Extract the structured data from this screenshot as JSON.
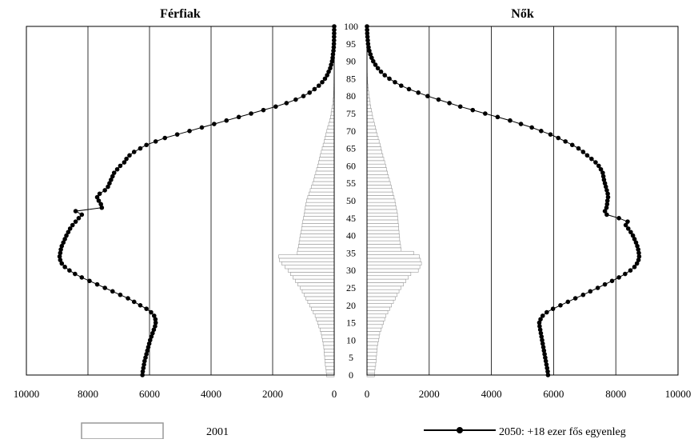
{
  "chart_data": {
    "type": "population-pyramid",
    "panels": [
      {
        "side": "left",
        "title": "Férfiak"
      },
      {
        "side": "right",
        "title": "Nők"
      }
    ],
    "x_axis": {
      "left_ticks": [
        "10000",
        "8000",
        "6000",
        "4000",
        "2000",
        "0"
      ],
      "right_ticks": [
        "0",
        "2000",
        "4000",
        "6000",
        "8000",
        "10000"
      ],
      "range": [
        0,
        10000
      ],
      "grid": "vertical"
    },
    "age_axis": {
      "labels": [
        "0",
        "5",
        "10",
        "15",
        "20",
        "25",
        "30",
        "35",
        "40",
        "45",
        "50",
        "55",
        "60",
        "65",
        "70",
        "75",
        "80",
        "85",
        "90",
        "95",
        "100"
      ],
      "range": [
        0,
        100
      ]
    },
    "legend": [
      {
        "label": "2001",
        "style": "bar"
      },
      {
        "label": "2050: +18 ezer fős egyenleg",
        "style": "line-marker"
      }
    ],
    "bars_2001": {
      "ages": [
        0,
        1,
        2,
        3,
        4,
        5,
        6,
        7,
        8,
        9,
        10,
        11,
        12,
        13,
        14,
        15,
        16,
        17,
        18,
        19,
        20,
        21,
        22,
        23,
        24,
        25,
        26,
        27,
        28,
        29,
        30,
        31,
        32,
        33,
        34,
        35,
        36,
        37,
        38,
        39,
        40,
        41,
        42,
        43,
        44,
        45,
        46,
        47,
        48,
        49,
        50,
        51,
        52,
        53,
        54,
        55,
        56,
        57,
        58,
        59,
        60,
        61,
        62,
        63,
        64,
        65,
        66,
        67,
        68,
        69,
        70,
        71,
        72,
        73,
        74,
        75,
        76,
        77,
        78,
        79,
        80,
        81,
        82,
        83,
        84,
        85,
        86,
        87,
        88,
        89,
        90,
        91,
        92,
        93,
        94,
        95,
        96,
        97,
        98,
        99,
        100
      ],
      "male": [
        250,
        260,
        270,
        290,
        300,
        310,
        320,
        330,
        340,
        360,
        380,
        400,
        420,
        460,
        500,
        540,
        580,
        620,
        680,
        740,
        800,
        860,
        920,
        980,
        1040,
        1100,
        1180,
        1260,
        1340,
        1420,
        1500,
        1600,
        1700,
        1780,
        1800,
        1200,
        1180,
        1160,
        1140,
        1120,
        1100,
        1080,
        1060,
        1040,
        1020,
        1000,
        980,
        960,
        940,
        920,
        900,
        860,
        820,
        780,
        740,
        700,
        660,
        630,
        600,
        570,
        540,
        510,
        480,
        450,
        420,
        390,
        360,
        330,
        300,
        270,
        240,
        210,
        180,
        150,
        120,
        100,
        80,
        60,
        45,
        35,
        25,
        20,
        15,
        12,
        10,
        8,
        6,
        5,
        4,
        3,
        2,
        2,
        1,
        1,
        1,
        0,
        0,
        0,
        0,
        0,
        0
      ],
      "female": [
        240,
        250,
        260,
        280,
        290,
        300,
        310,
        320,
        330,
        350,
        370,
        390,
        410,
        450,
        490,
        530,
        570,
        610,
        670,
        730,
        790,
        850,
        910,
        970,
        1030,
        1090,
        1170,
        1250,
        1330,
        1410,
        1650,
        1700,
        1750,
        1720,
        1680,
        1500,
        1100,
        1080,
        1060,
        1050,
        1040,
        1030,
        1020,
        1010,
        1000,
        990,
        980,
        960,
        940,
        920,
        900,
        870,
        840,
        810,
        780,
        750,
        720,
        690,
        660,
        630,
        600,
        570,
        540,
        510,
        480,
        450,
        420,
        390,
        360,
        330,
        300,
        270,
        240,
        210,
        180,
        160,
        140,
        120,
        100,
        85,
        70,
        55,
        40,
        30,
        20,
        15,
        10,
        7,
        5,
        3,
        2,
        2,
        1,
        1,
        1,
        0,
        0,
        0,
        0,
        0,
        0
      ]
    },
    "series_2050": {
      "ages": [
        0,
        1,
        2,
        3,
        4,
        5,
        6,
        7,
        8,
        9,
        10,
        11,
        12,
        13,
        14,
        15,
        16,
        17,
        18,
        19,
        20,
        21,
        22,
        23,
        24,
        25,
        26,
        27,
        28,
        29,
        30,
        31,
        32,
        33,
        34,
        35,
        36,
        37,
        38,
        39,
        40,
        41,
        42,
        43,
        44,
        45,
        46,
        47,
        48,
        49,
        50,
        51,
        52,
        53,
        54,
        55,
        56,
        57,
        58,
        59,
        60,
        61,
        62,
        63,
        64,
        65,
        66,
        67,
        68,
        69,
        70,
        71,
        72,
        73,
        74,
        75,
        76,
        77,
        78,
        79,
        80,
        81,
        82,
        83,
        84,
        85,
        86,
        87,
        88,
        89,
        90,
        91,
        92,
        93,
        94,
        95,
        96,
        97,
        98,
        99,
        100
      ],
      "male": [
        6230,
        6220,
        6200,
        6180,
        6160,
        6130,
        6100,
        6070,
        6040,
        6010,
        5980,
        5940,
        5900,
        5860,
        5820,
        5800,
        5810,
        5850,
        5950,
        6100,
        6300,
        6500,
        6700,
        6950,
        7200,
        7450,
        7700,
        7950,
        8200,
        8420,
        8600,
        8750,
        8850,
        8900,
        8920,
        8900,
        8880,
        8850,
        8800,
        8750,
        8700,
        8640,
        8580,
        8500,
        8400,
        8300,
        8200,
        8400,
        7550,
        7580,
        7650,
        7700,
        7620,
        7450,
        7350,
        7300,
        7250,
        7200,
        7150,
        7050,
        6950,
        6820,
        6750,
        6650,
        6500,
        6300,
        6100,
        5800,
        5500,
        5100,
        4700,
        4300,
        3900,
        3500,
        3100,
        2700,
        2300,
        1900,
        1550,
        1250,
        1000,
        800,
        640,
        500,
        390,
        300,
        230,
        180,
        130,
        100,
        70,
        50,
        40,
        25,
        15,
        10,
        6,
        4,
        2,
        1,
        0
      ],
      "female": [
        5820,
        5810,
        5790,
        5770,
        5750,
        5730,
        5710,
        5690,
        5670,
        5650,
        5630,
        5610,
        5590,
        5570,
        5550,
        5540,
        5580,
        5650,
        5780,
        5980,
        6220,
        6460,
        6700,
        6950,
        7180,
        7420,
        7650,
        7880,
        8100,
        8300,
        8470,
        8600,
        8680,
        8730,
        8750,
        8740,
        8720,
        8690,
        8650,
        8600,
        8550,
        8480,
        8400,
        8320,
        8380,
        8100,
        7710,
        7650,
        7700,
        7720,
        7730,
        7750,
        7740,
        7710,
        7680,
        7650,
        7620,
        7600,
        7580,
        7520,
        7450,
        7350,
        7220,
        7080,
        6950,
        6800,
        6600,
        6380,
        6150,
        5900,
        5600,
        5300,
        4950,
        4600,
        4200,
        3800,
        3400,
        3000,
        2650,
        2300,
        1950,
        1650,
        1350,
        1100,
        900,
        720,
        570,
        450,
        350,
        270,
        200,
        150,
        110,
        75,
        50,
        35,
        25,
        15,
        8,
        4,
        0
      ]
    }
  }
}
